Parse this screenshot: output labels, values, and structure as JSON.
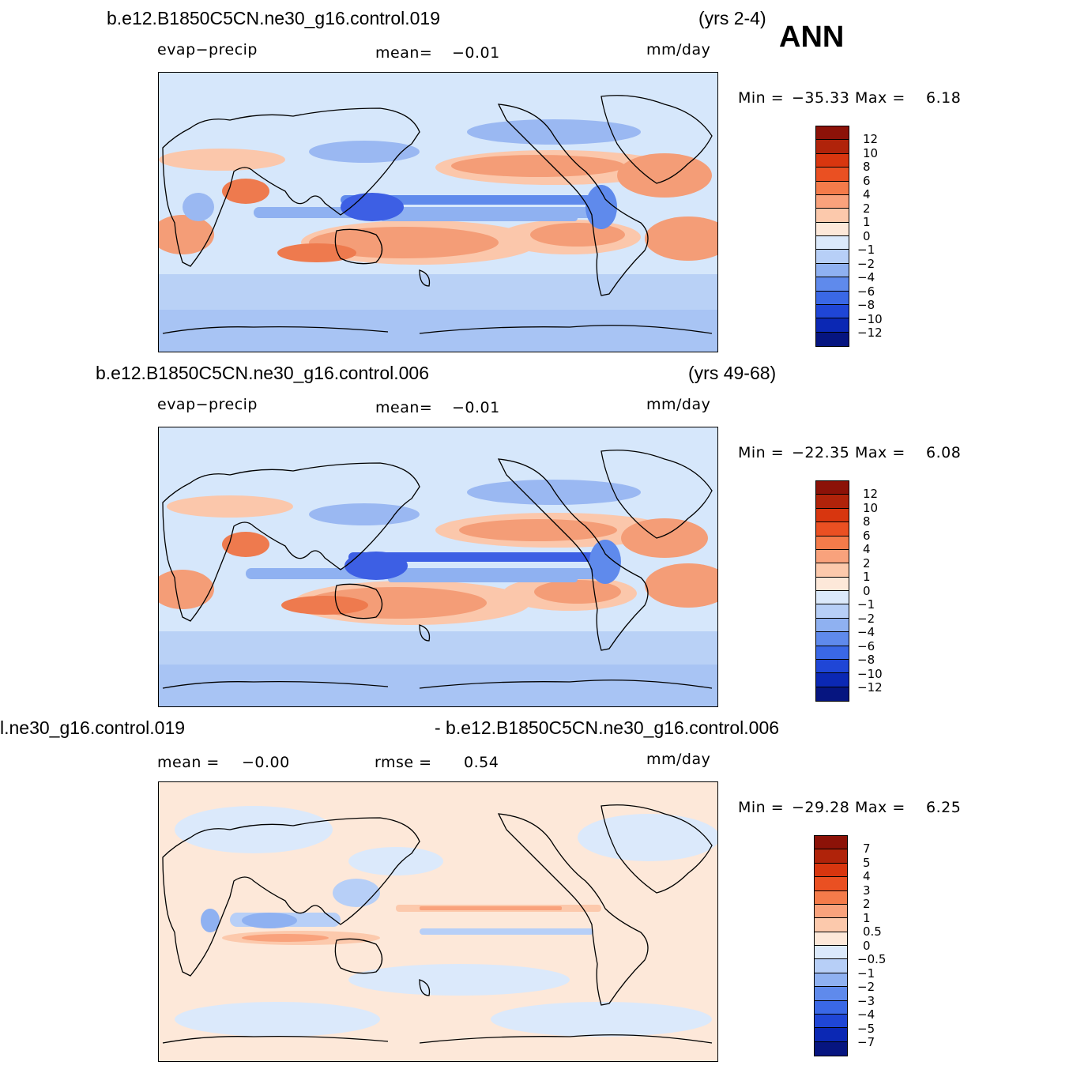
{
  "panels": [
    {
      "title_left": "b.e12.B1850C5CN.ne30_g16.control.019",
      "title_right": "(yrs 2-4)",
      "var_label": "evap−precip",
      "stat1_label": "mean=",
      "stat1_value": "−0.01",
      "stat2_label": "",
      "stat2_value": "",
      "units": "mm/day",
      "min_label": "Min  =",
      "min_value": "−35.33",
      "max_label": "Max  =",
      "max_value": "6.18",
      "colorbar_labels": [
        "12",
        "10",
        "8",
        "6",
        "4",
        "2",
        "1",
        "0",
        "−1",
        "−2",
        "−4",
        "−6",
        "−8",
        "−10",
        "−12"
      ]
    },
    {
      "title_left": "b.e12.B1850C5CN.ne30_g16.control.006",
      "title_right": "(yrs 49-68)",
      "var_label": "evap−precip",
      "stat1_label": "mean=",
      "stat1_value": "−0.01",
      "stat2_label": "",
      "stat2_value": "",
      "units": "mm/day",
      "min_label": "Min  =",
      "min_value": "−22.35",
      "max_label": "Max  =",
      "max_value": "6.08",
      "colorbar_labels": [
        "12",
        "10",
        "8",
        "6",
        "4",
        "2",
        "1",
        "0",
        "−1",
        "−2",
        "−4",
        "−6",
        "−8",
        "−10",
        "−12"
      ]
    },
    {
      "title_left": "l.ne30_g16.control.019",
      "title_right": "- b.e12.B1850C5CN.ne30_g16.control.006",
      "var_label": "",
      "stat1_label": "mean  =",
      "stat1_value": "−0.00",
      "stat2_label": "rmse  =",
      "stat2_value": "0.54",
      "units": "mm/day",
      "min_label": "Min  =",
      "min_value": "−29.28",
      "max_label": "Max  =",
      "max_value": "6.25",
      "colorbar_labels": [
        "7",
        "5",
        "4",
        "3",
        "2",
        "1",
        "0.5",
        "0",
        "−0.5",
        "−1",
        "−2",
        "−3",
        "−4",
        "−5",
        "−7"
      ]
    }
  ],
  "season": "ANN",
  "colors": {
    "scale": [
      "#8c1208",
      "#b0230a",
      "#d8360f",
      "#ea5022",
      "#f47b4a",
      "#f9a27c",
      "#fcc9ac",
      "#fde8d9",
      "#dbe9fb",
      "#b7cff7",
      "#8fb1f1",
      "#5f8aec",
      "#3a68e6",
      "#1f46d6",
      "#0b28b4",
      "#061580"
    ],
    "pos_mid": "#f5a07a",
    "pos_strong": "#ee7a4e",
    "neg_mid": "#9ab8f2",
    "neg_strong": "#3d5fe4"
  }
}
